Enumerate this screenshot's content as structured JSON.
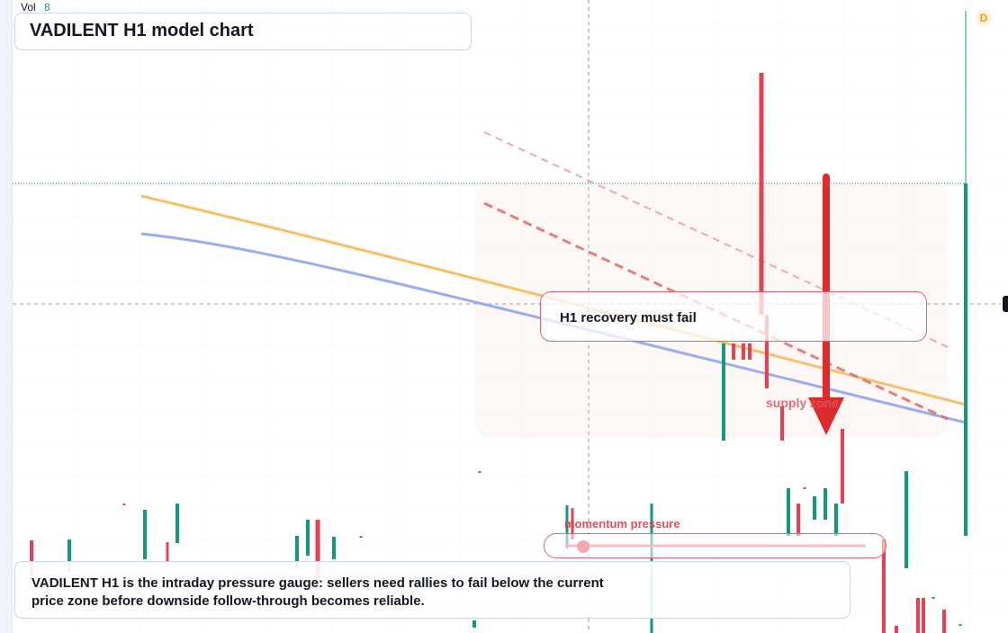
{
  "header": {
    "vol_label": "Vol",
    "vol_value": "8",
    "interval_badge": "D"
  },
  "title": "VADILENT H1 model chart",
  "annotations": {
    "callout": "H1 recovery must fail",
    "supply_zone_label": "supply zone",
    "momentum_label": "momentum pressure",
    "momentum_level": 0.06,
    "note": "VADILENT H1 is the intraday pressure gauge: sellers need rallies to fail below the current price zone before downside follow-through becomes reliable."
  },
  "colors": {
    "up": "#129a80",
    "down": "#e8404e",
    "ma_fast": "#f6c06a",
    "ma_slow": "#98aef0",
    "accent_red": "#dd2a2a",
    "grid": "#e9edf3"
  },
  "icons": {
    "down_arrow": "arrow-down-icon",
    "badge": "interval-badge"
  }
}
